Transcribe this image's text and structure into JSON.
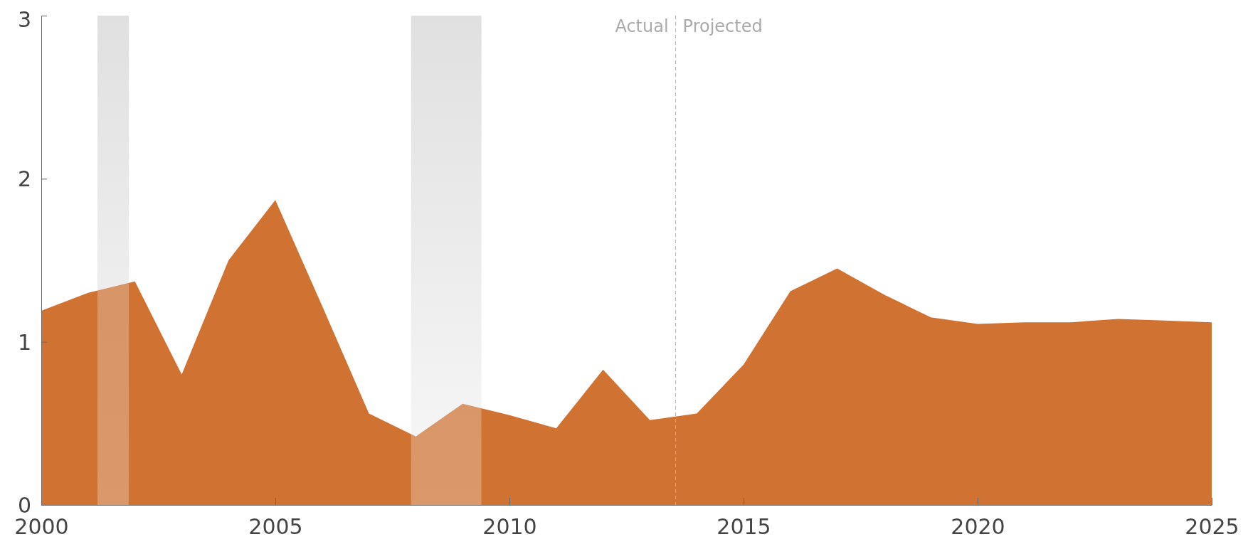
{
  "chart_data": {
    "type": "area",
    "x": [
      2000,
      2001,
      2002,
      2003,
      2004,
      2005,
      2006,
      2007,
      2008,
      2009,
      2010,
      2011,
      2012,
      2013,
      2014,
      2015,
      2016,
      2017,
      2018,
      2019,
      2020,
      2021,
      2022,
      2023,
      2024,
      2025
    ],
    "series": [
      {
        "color": "#cf7232",
        "values": [
          1.19,
          1.3,
          1.37,
          0.8,
          1.5,
          1.87,
          1.22,
          0.56,
          0.42,
          0.62,
          0.55,
          0.47,
          0.83,
          0.52,
          0.56,
          0.86,
          1.31,
          1.45,
          1.29,
          1.15,
          1.11,
          1.12,
          1.12,
          1.14,
          1.13,
          1.12
        ]
      }
    ],
    "xlim": [
      2000,
      2025
    ],
    "xticks": [
      2000,
      2005,
      2010,
      2015,
      2020,
      2025
    ],
    "ylim": [
      0,
      3
    ],
    "yticks": [
      0,
      1,
      2,
      3
    ],
    "bands": [
      {
        "axis": "x",
        "from": 2001.2,
        "to": 2001.87,
        "color": "#e0e0e0"
      },
      {
        "axis": "x",
        "from": 2007.9,
        "to": 2009.4,
        "color": "#e0e0e0"
      }
    ],
    "ref_lines": [
      {
        "axis": "x",
        "value": 2013.55,
        "color": "#b0b0b0",
        "line_style": "dashed"
      }
    ],
    "annotations": [
      {
        "text": "Actual",
        "x": 2013.55,
        "y": 2.95
      },
      {
        "text": "Projected",
        "x": 2013.55,
        "y": 2.95
      }
    ],
    "grid": false
  }
}
